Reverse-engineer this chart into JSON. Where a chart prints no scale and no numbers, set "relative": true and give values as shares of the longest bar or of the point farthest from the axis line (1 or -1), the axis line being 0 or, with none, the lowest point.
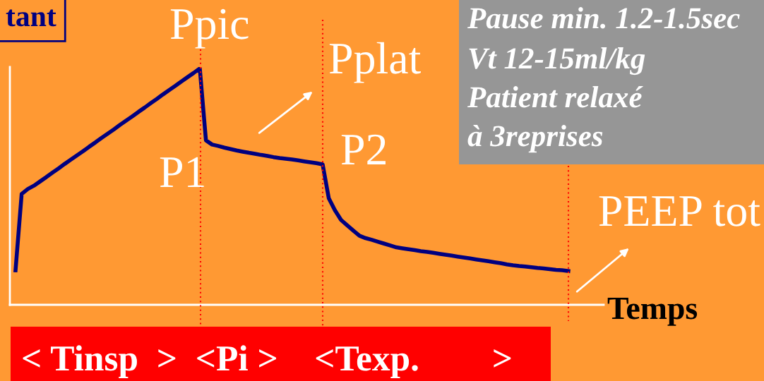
{
  "chart_data": {
    "type": "line",
    "title": "tant",
    "xlabel": "Temps",
    "relative": true,
    "categories": [
      null,
      null,
      null,
      null,
      null,
      null,
      null,
      null,
      null,
      null,
      null,
      null,
      null,
      null,
      null,
      null,
      null,
      null,
      null,
      null,
      null,
      null,
      null,
      null,
      null,
      null,
      null,
      null,
      null,
      null,
      null,
      null,
      null,
      null,
      null,
      null,
      null,
      null,
      null,
      null,
      null,
      null,
      null,
      null,
      null,
      null,
      null,
      null,
      null,
      null,
      null,
      null,
      null,
      null,
      null,
      null,
      null,
      null,
      null,
      null,
      null,
      null,
      null,
      null,
      null,
      null,
      null,
      null,
      null,
      null,
      null,
      null,
      null,
      null,
      null,
      null,
      null,
      null,
      null,
      null,
      null,
      null,
      null,
      null,
      null,
      null,
      null,
      null,
      null,
      null,
      null
    ],
    "series": [
      {
        "color": "#000080",
        "values": [
          0.146,
          0.469,
          0.49,
          0.504,
          0.522,
          0.54,
          0.559,
          0.577,
          0.596,
          0.614,
          0.632,
          0.65,
          0.669,
          0.687,
          0.706,
          0.724,
          0.742,
          0.761,
          0.779,
          0.797,
          0.816,
          0.834,
          0.853,
          0.871,
          0.89,
          0.908,
          0.926,
          0.945,
          0.963,
          0.981,
          1.0,
          0.696,
          0.678,
          0.672,
          0.665,
          0.659,
          0.653,
          0.648,
          0.643,
          0.639,
          0.634,
          0.63,
          0.625,
          0.621,
          0.618,
          0.615,
          0.611,
          0.607,
          0.603,
          0.599,
          0.594,
          0.451,
          0.4,
          0.359,
          0.336,
          0.314,
          0.292,
          0.282,
          0.275,
          0.267,
          0.259,
          0.251,
          0.243,
          0.239,
          0.235,
          0.231,
          0.227,
          0.224,
          0.22,
          0.216,
          0.212,
          0.208,
          0.204,
          0.2,
          0.196,
          0.192,
          0.188,
          0.184,
          0.18,
          0.176,
          0.171,
          0.167,
          0.164,
          0.162,
          0.159,
          0.156,
          0.154,
          0.151,
          0.148,
          0.146,
          0.143
        ]
      }
    ],
    "annotations": [
      "Ppic",
      "Pplat",
      "P1",
      "P2",
      "PEEP tot",
      "Pause min. 1.2-1.5sec",
      "Vt 12-15ml/kg",
      "Patient relaxé",
      "à 3reprises",
      "< Tinsp  >  <Pi >    <Texp.        >"
    ]
  }
}
